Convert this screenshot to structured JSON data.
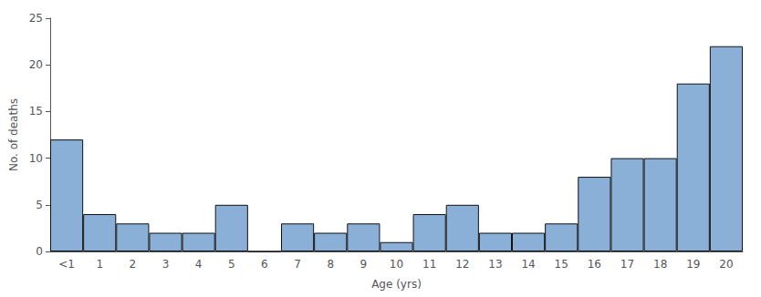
{
  "chart_data": {
    "type": "bar",
    "categories": [
      "<1",
      "1",
      "2",
      "3",
      "4",
      "5",
      "6",
      "7",
      "8",
      "9",
      "10",
      "11",
      "12",
      "13",
      "14",
      "15",
      "16",
      "17",
      "18",
      "19",
      "20"
    ],
    "values": [
      12,
      4,
      3,
      2,
      2,
      5,
      0,
      3,
      2,
      3,
      1,
      4,
      5,
      2,
      2,
      3,
      8,
      10,
      10,
      18,
      22
    ],
    "color": "#8ab0d8",
    "xlabel": "Age (yrs)",
    "ylabel": "No. of deaths",
    "ylim": [
      0,
      25
    ],
    "yticks": [
      0,
      5,
      10,
      15,
      20,
      25
    ],
    "grid": false
  }
}
